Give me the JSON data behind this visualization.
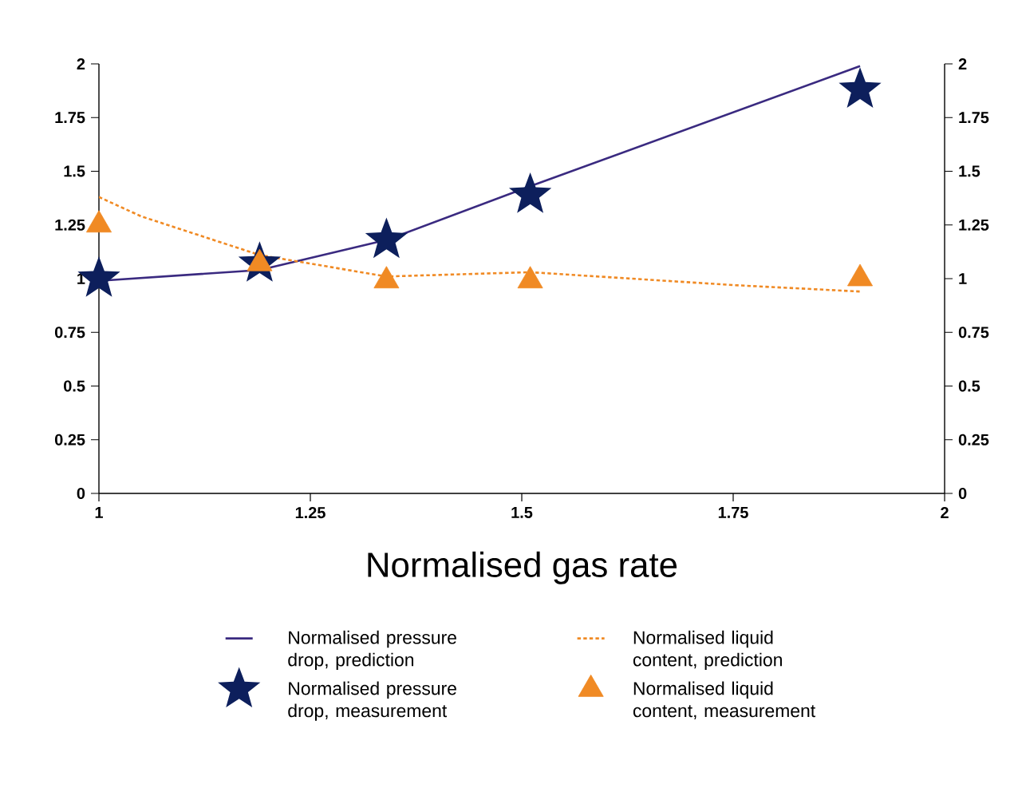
{
  "chart_data": {
    "type": "line",
    "xlabel": "Normalised gas rate",
    "xlim": [
      1,
      2
    ],
    "xticks": [
      1,
      1.25,
      1.5,
      1.75,
      2
    ],
    "ylim": [
      0,
      2
    ],
    "yticks": [
      0,
      0.25,
      0.5,
      0.75,
      1,
      1.25,
      1.5,
      1.75,
      2
    ],
    "y2lim": [
      0,
      2
    ],
    "y2ticks": [
      0,
      0.25,
      0.5,
      0.75,
      1,
      1.25,
      1.5,
      1.75,
      2
    ],
    "grid": false,
    "legend": "bottom",
    "series": [
      {
        "name": "Normalised pressure drop, prediction",
        "marker": "none",
        "line_style": "solid",
        "color": "#3a2a80",
        "x": [
          1,
          1.19,
          1.34,
          1.51,
          1.9
        ],
        "values": [
          0.99,
          1.04,
          1.18,
          1.43,
          1.99
        ]
      },
      {
        "name": "Normalised liquid content, prediction",
        "marker": "none",
        "line_style": "dotted",
        "color": "#f08a24",
        "x": [
          1,
          1.05,
          1.19,
          1.25,
          1.34,
          1.51,
          1.75,
          1.9
        ],
        "values": [
          1.38,
          1.29,
          1.11,
          1.07,
          1.01,
          1.03,
          0.97,
          0.94
        ]
      },
      {
        "name": "Normalised pressure drop, measurement",
        "type": "scatter",
        "marker": "star",
        "color": "#0d1f5c",
        "x": [
          1,
          1.19,
          1.34,
          1.51,
          1.9
        ],
        "values": [
          1.0,
          1.07,
          1.18,
          1.39,
          1.88
        ]
      },
      {
        "name": "Normalised liquid content, measurement",
        "type": "scatter",
        "marker": "triangle",
        "color": "#f08a24",
        "x": [
          1,
          1.19,
          1.34,
          1.51,
          1.9
        ],
        "values": [
          1.25,
          1.07,
          0.99,
          0.99,
          1.0
        ]
      }
    ]
  }
}
